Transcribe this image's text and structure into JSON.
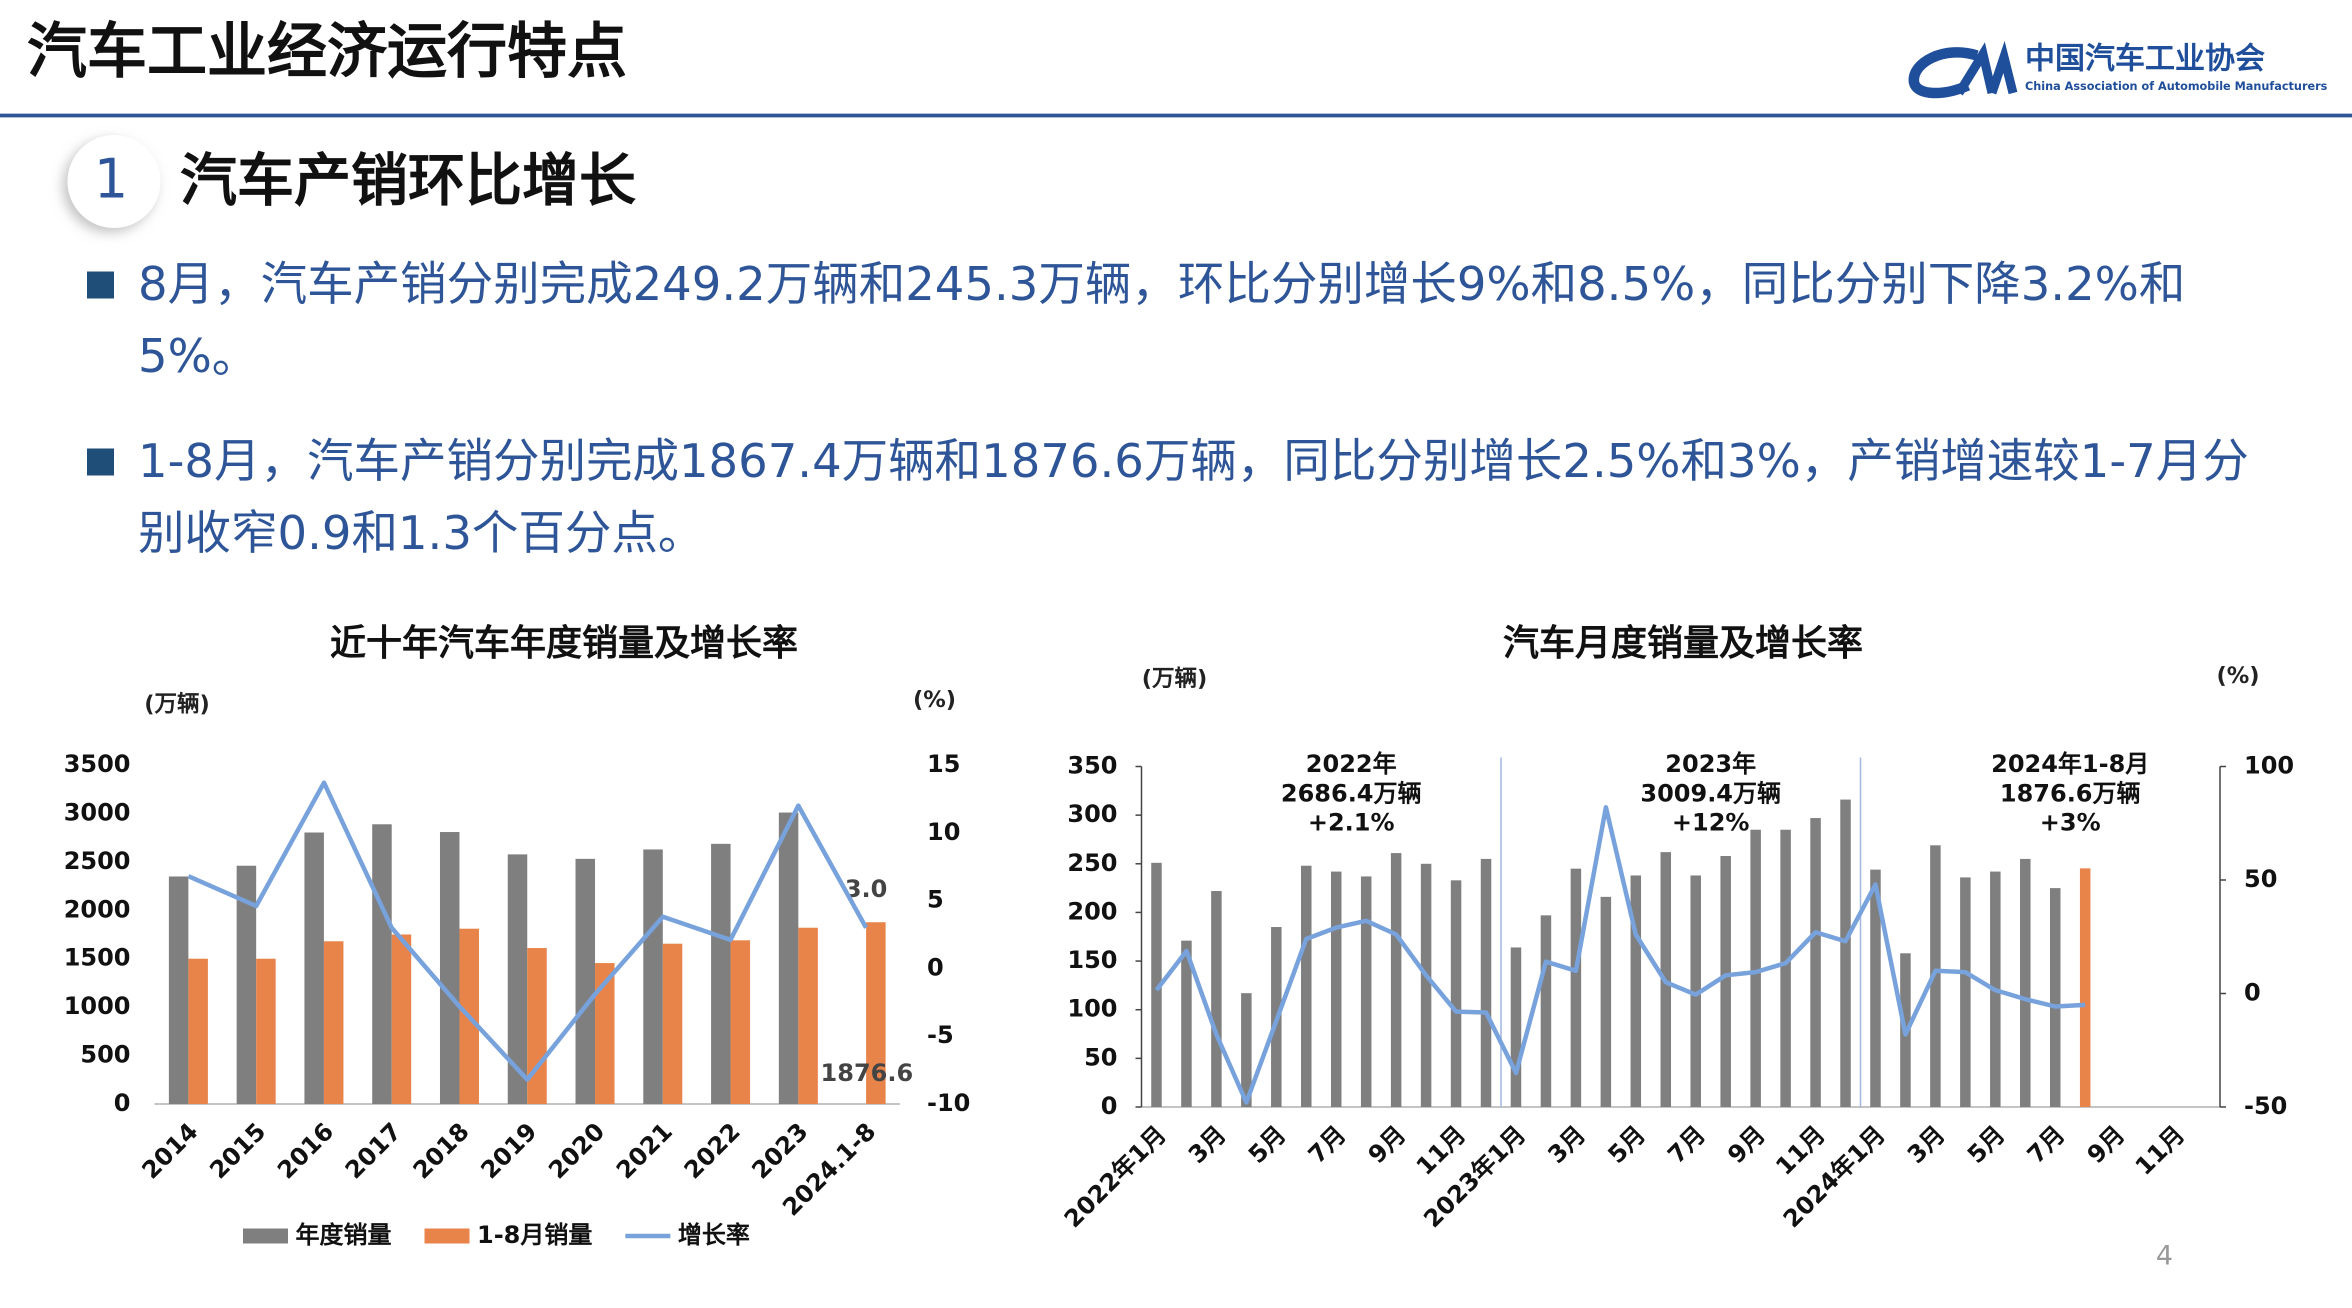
{
  "header": {
    "title": "汽车工业经济运行特点",
    "logo_name": "中国汽车工业协会",
    "logo_english": "China Association of Automobile Manufacturers"
  },
  "section": {
    "number": "1",
    "title": "汽车产销环比增长"
  },
  "bullets": [
    "8月，汽车产销分别完成249.2万辆和245.3万辆，环比分别增长9%和8.5%，同比分别下降3.2%和5%。",
    "1-8月，汽车产销分别完成1867.4万辆和1876.6万辆，同比分别增长2.5%和3%，产销增速较1-7月分别收窄0.9和1.3个百分点。"
  ],
  "page_number": "4",
  "chart_data": [
    {
      "type": "bar",
      "title": "近十年汽车年度销量及增长率",
      "ylabel": "(万辆)",
      "y2label": "(%)",
      "categories": [
        "2014",
        "2015",
        "2016",
        "2017",
        "2018",
        "2019",
        "2020",
        "2021",
        "2022",
        "2023",
        "2024.1-8"
      ],
      "series": [
        {
          "name": "年度销量",
          "type": "bar",
          "color": "#7f7f7f",
          "values": [
            2349,
            2460,
            2803,
            2888,
            2808,
            2577,
            2531,
            2628,
            2686,
            3009,
            null
          ]
        },
        {
          "name": "1-8月销量",
          "type": "bar",
          "color": "#e8834a",
          "values": [
            1500,
            1500,
            1680,
            1750,
            1810,
            1610,
            1455,
            1655,
            1690,
            1820,
            1876.6
          ],
          "value_labels": [
            null,
            null,
            null,
            null,
            null,
            null,
            null,
            null,
            null,
            null,
            "1876.6"
          ]
        },
        {
          "name": "增长率",
          "type": "line",
          "axis": "y2",
          "color": "#78a2dc",
          "values": [
            6.8,
            4.6,
            13.7,
            3.0,
            -2.8,
            -8.2,
            -1.9,
            3.8,
            2.1,
            12,
            3.0
          ],
          "value_labels": [
            null,
            null,
            null,
            null,
            null,
            null,
            null,
            null,
            null,
            null,
            "3.0"
          ]
        }
      ],
      "ylim": [
        0,
        3500
      ],
      "yticks": [
        0,
        500,
        1000,
        1500,
        2000,
        2500,
        3000,
        3500
      ],
      "y2lim": [
        -10,
        15
      ],
      "y2ticks": [
        -10,
        -5,
        0,
        5,
        10,
        15
      ],
      "legend": "bottom"
    },
    {
      "type": "bar",
      "title": "汽车月度销量及增长率",
      "ylabel": "(万辆)",
      "y2label": "(%)",
      "categories": [
        "2022年1月",
        null,
        "3月",
        null,
        "5月",
        null,
        "7月",
        null,
        "9月",
        null,
        "11月",
        null,
        "2023年1月",
        null,
        "3月",
        null,
        "5月",
        null,
        "7月",
        null,
        "9月",
        null,
        "11月",
        null,
        "2024年1月",
        null,
        "3月",
        null,
        "5月",
        null,
        "7月",
        null,
        "9月",
        null,
        "11月",
        null
      ],
      "annotations": [
        [
          "2022年",
          "2686.4万辆",
          "+2.1%"
        ],
        [
          "2023年",
          "3009.4万辆",
          "+12%"
        ],
        [
          "2024年1-8月",
          "1876.6万辆",
          "+3%"
        ]
      ],
      "series": [
        {
          "type": "bar",
          "color": "#7f7f7f",
          "colors": [
            "#7f7f7f",
            "#7f7f7f",
            "#7f7f7f",
            "#7f7f7f",
            "#7f7f7f",
            "#7f7f7f",
            "#7f7f7f",
            "#7f7f7f",
            "#7f7f7f",
            "#7f7f7f",
            "#7f7f7f",
            "#7f7f7f",
            "#7f7f7f",
            "#7f7f7f",
            "#7f7f7f",
            "#7f7f7f",
            "#7f7f7f",
            "#7f7f7f",
            "#7f7f7f",
            "#7f7f7f",
            "#7f7f7f",
            "#7f7f7f",
            "#7f7f7f",
            "#7f7f7f",
            "#7f7f7f",
            "#7f7f7f",
            "#7f7f7f",
            "#7f7f7f",
            "#7f7f7f",
            "#7f7f7f",
            "#7f7f7f",
            "#e8834a",
            "#7f7f7f",
            "#7f7f7f",
            "#7f7f7f",
            "#7f7f7f"
          ],
          "values": [
            251,
            171,
            222,
            117,
            185,
            248,
            242,
            237,
            261,
            250,
            233,
            255,
            164,
            197,
            245,
            216,
            238,
            262,
            238,
            258,
            285,
            285,
            297,
            316,
            244,
            158,
            269,
            236,
            242,
            255,
            225,
            245.3,
            null,
            null,
            null,
            null
          ]
        },
        {
          "type": "line",
          "axis": "y2",
          "color": "#78a2dc",
          "values": [
            1.5,
            18.7,
            -18,
            -48,
            -12,
            24,
            29,
            32,
            26,
            8,
            -8,
            -8.4,
            -35,
            14,
            10,
            82,
            26,
            5,
            -0.5,
            8,
            9.4,
            13.4,
            27,
            23,
            48,
            -18,
            10,
            9.4,
            1.5,
            -2.5,
            -5.7,
            -5,
            null,
            null,
            null,
            null
          ]
        }
      ],
      "ylim": [
        0,
        350
      ],
      "yticks": [
        0,
        50,
        100,
        150,
        200,
        250,
        300,
        350
      ],
      "y2lim": [
        -50,
        100
      ],
      "y2ticks": [
        -50,
        0,
        50,
        100
      ]
    }
  ]
}
